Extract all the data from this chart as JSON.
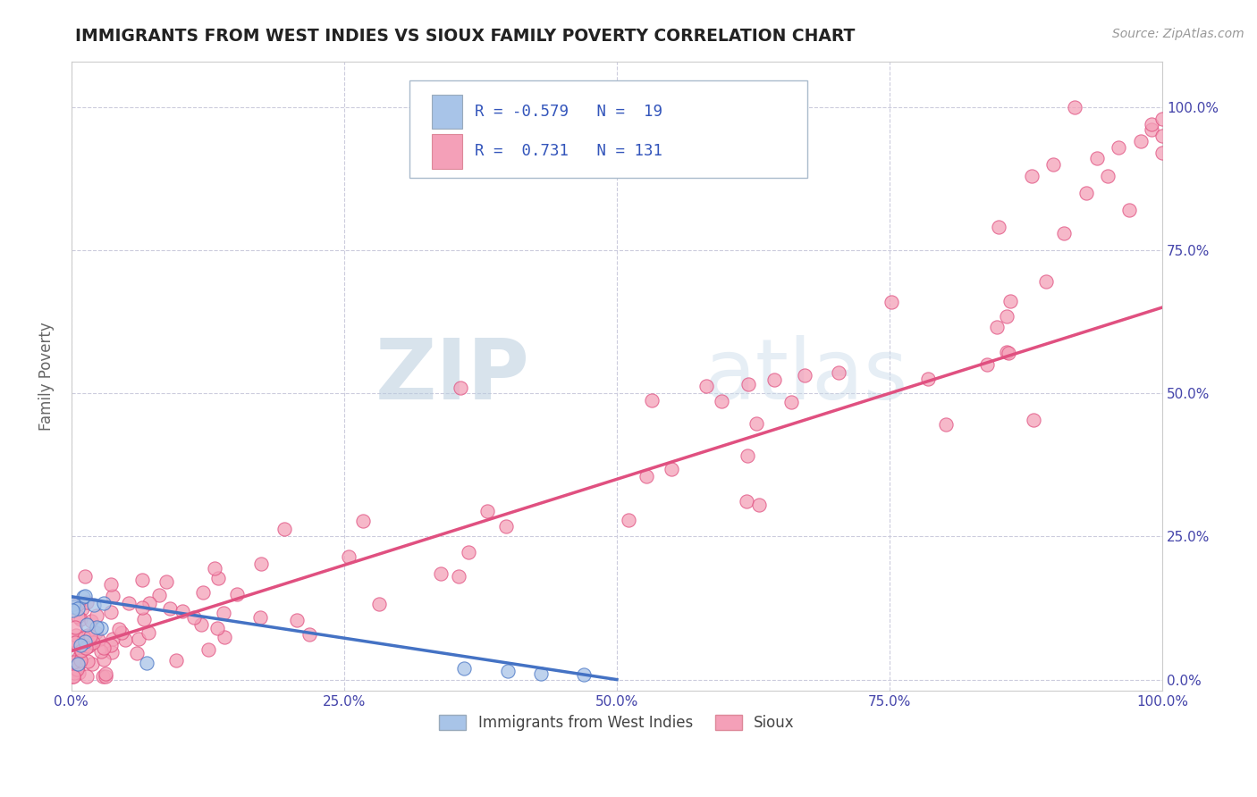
{
  "title": "IMMIGRANTS FROM WEST INDIES VS SIOUX FAMILY POVERTY CORRELATION CHART",
  "source_text": "Source: ZipAtlas.com",
  "ylabel": "Family Poverty",
  "legend_label1": "Immigrants from West Indies",
  "legend_label2": "Sioux",
  "R1": -0.579,
  "N1": 19,
  "R2": 0.731,
  "N2": 131,
  "color1": "#a8c4e8",
  "color2": "#f4a0b8",
  "line_color1": "#4472c4",
  "line_color2": "#e05080",
  "title_color": "#222222",
  "axis_tick_color": "#4444aa",
  "watermark_color": "#d0dff0",
  "bg_color": "#ffffff",
  "grid_color": "#ccccdd",
  "xmin": 0.0,
  "xmax": 1.0,
  "ymin": -0.02,
  "ymax": 1.08,
  "x_ticks": [
    0.0,
    0.25,
    0.5,
    0.75,
    1.0
  ],
  "x_tick_labels": [
    "0.0%",
    "25.0%",
    "50.0%",
    "75.0%",
    "100.0%"
  ],
  "y_ticks": [
    0.0,
    0.25,
    0.5,
    0.75,
    1.0
  ],
  "y_tick_labels": [
    "0.0%",
    "25.0%",
    "50.0%",
    "75.0%",
    "100.0%"
  ]
}
